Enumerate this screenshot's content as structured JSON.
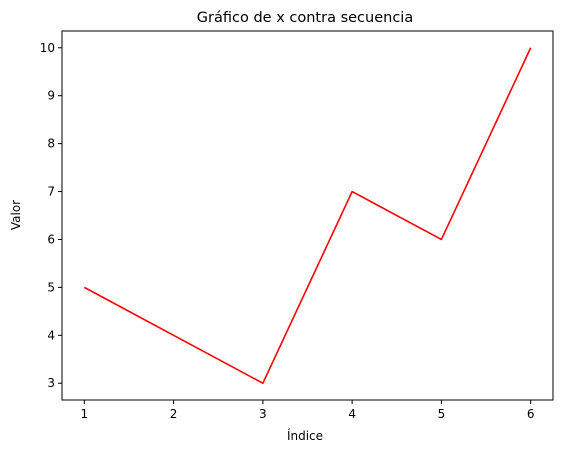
{
  "chart_data": {
    "type": "line",
    "title": "Gráfico de x contra secuencia",
    "xlabel": "Índice",
    "ylabel": "Valor",
    "x": [
      1,
      2,
      3,
      4,
      5,
      6
    ],
    "series": [
      {
        "values": [
          5,
          4,
          3,
          7,
          6,
          10
        ],
        "color": "#ff0000"
      }
    ],
    "xlim": [
      0.75,
      6.25
    ],
    "ylim": [
      2.65,
      10.35
    ],
    "xticks": [
      "1",
      "2",
      "3",
      "4",
      "5",
      "6"
    ],
    "yticks": [
      "3",
      "4",
      "5",
      "6",
      "7",
      "8",
      "9",
      "10"
    ],
    "grid": false
  }
}
